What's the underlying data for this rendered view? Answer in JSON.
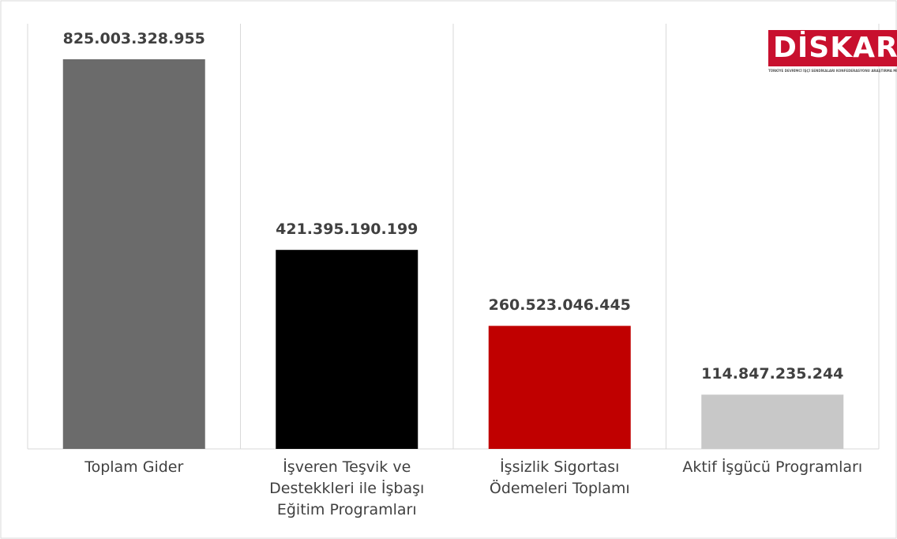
{
  "chart_data": {
    "type": "bar",
    "categories": [
      "Toplam Gider",
      "İşveren Teşvik ve Destekkleri ile İşbaşı Eğitim Programları",
      "İşsizlik Sigortası Ödemeleri Toplamı",
      "Aktif İşgücü Programları"
    ],
    "values": [
      825003328955,
      421395190199,
      260523046445,
      114847235244
    ],
    "value_labels": [
      "825.003.328.955",
      "421.395.190.199",
      "260.523.046.445",
      "114.847.235.244"
    ],
    "colors": [
      "#6b6b6b",
      "#000000",
      "#c00000",
      "#c8c8c8"
    ],
    "grid": true
  },
  "logo": {
    "name": "DİSKAR",
    "subtitle": "TÜRKİYE DEVRİMCİ İŞÇİ SENDİKALARI KONFEDERASYONU ARAŞTIRMA MERKEZİ"
  }
}
